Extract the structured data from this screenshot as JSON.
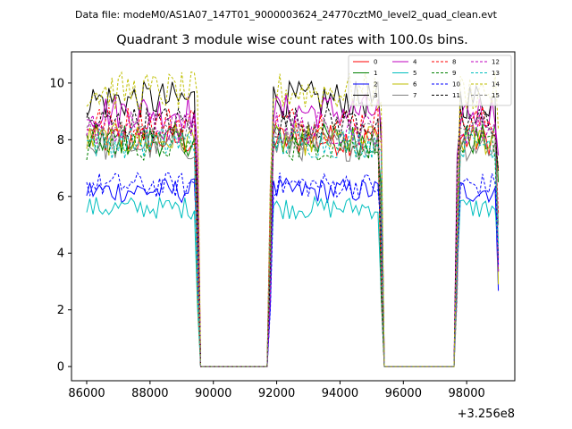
{
  "figure": {
    "suptitle": "Data file: modeM0/AS1A07_147T01_9000003624_24770cztM0_level2_quad_clean.evt"
  },
  "chart_data": {
    "type": "line",
    "title": "Quadrant 3 module wise count rates with 100.0s bins.",
    "xlabel": "",
    "ylabel": "",
    "x_offset_label": "+3.256e8",
    "xlim": [
      85520,
      99520
    ],
    "ylim": [
      -0.5,
      11.1
    ],
    "xticks": [
      86000,
      88000,
      90000,
      92000,
      94000,
      96000,
      98000
    ],
    "xtick_labels": [
      "86000",
      "88000",
      "90000",
      "92000",
      "94000",
      "96000",
      "98000"
    ],
    "yticks": [
      0,
      2,
      4,
      6,
      8,
      10
    ],
    "ytick_labels": [
      "0",
      "2",
      "4",
      "6",
      "8",
      "10"
    ],
    "grid": false,
    "legend_position": "top-right",
    "bin_size_s": 100,
    "segments": [
      {
        "start": 86000,
        "end": 89500,
        "bins": 36
      },
      {
        "start": 89600,
        "end": 91700,
        "zero": true
      },
      {
        "start": 91800,
        "end": 95300,
        "bins": 36
      },
      {
        "start": 95400,
        "end": 97600,
        "zero": true
      },
      {
        "start": 97700,
        "end": 99000,
        "bins": 14
      }
    ],
    "series": [
      {
        "name": "0",
        "level": 8.0,
        "color": "#ff0000",
        "dashed": false
      },
      {
        "name": "1",
        "level": 8.0,
        "color": "#008000",
        "dashed": false
      },
      {
        "name": "2",
        "level": 6.2,
        "color": "#0000ff",
        "dashed": false
      },
      {
        "name": "3",
        "level": 9.4,
        "color": "#000000",
        "dashed": false
      },
      {
        "name": "4",
        "level": 9.0,
        "color": "#bf00bf",
        "dashed": false
      },
      {
        "name": "5",
        "level": 5.6,
        "color": "#00bfbf",
        "dashed": false
      },
      {
        "name": "6",
        "level": 8.0,
        "color": "#bfbf00",
        "dashed": false
      },
      {
        "name": "7",
        "level": 7.8,
        "color": "#808080",
        "dashed": false
      },
      {
        "name": "8",
        "level": 8.6,
        "color": "#ff0000",
        "dashed": true
      },
      {
        "name": "9",
        "level": 7.8,
        "color": "#008000",
        "dashed": true
      },
      {
        "name": "10",
        "level": 6.4,
        "color": "#0000ff",
        "dashed": true
      },
      {
        "name": "11",
        "level": 8.6,
        "color": "#000000",
        "dashed": true
      },
      {
        "name": "12",
        "level": 8.4,
        "color": "#bf00bf",
        "dashed": true
      },
      {
        "name": "13",
        "level": 7.9,
        "color": "#00bfbf",
        "dashed": true
      },
      {
        "name": "14",
        "level": 9.7,
        "color": "#bfbf00",
        "dashed": true
      },
      {
        "name": "15",
        "level": 8.2,
        "color": "#808080",
        "dashed": true
      }
    ]
  }
}
